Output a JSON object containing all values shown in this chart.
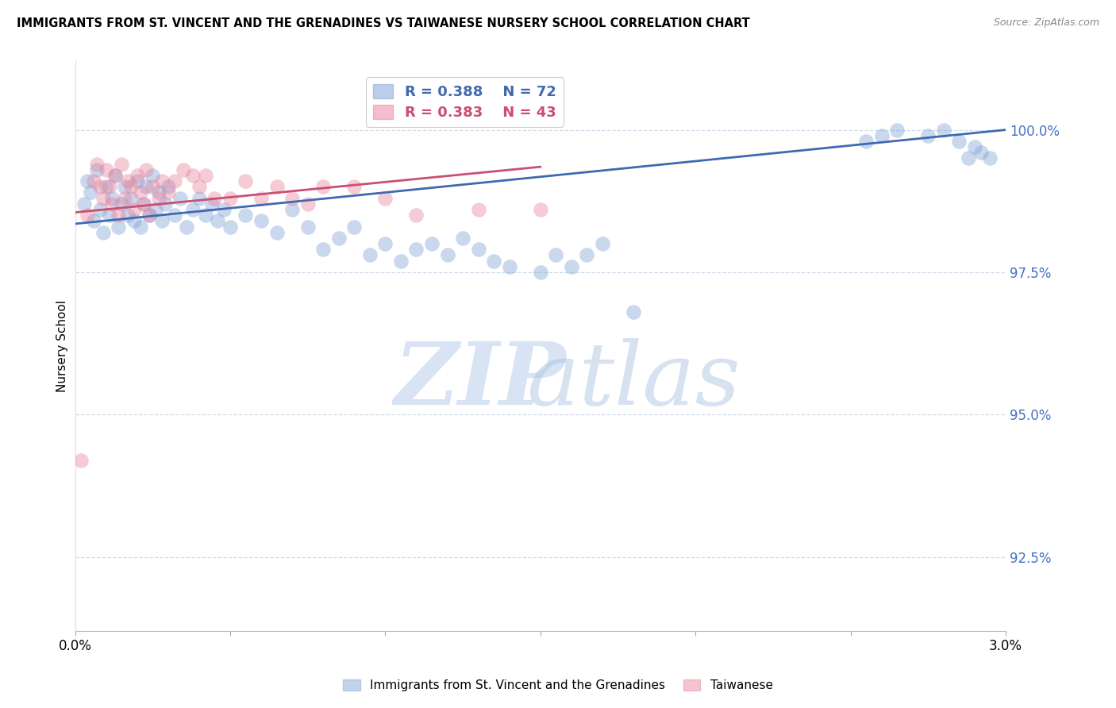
{
  "title": "IMMIGRANTS FROM ST. VINCENT AND THE GRENADINES VS TAIWANESE NURSERY SCHOOL CORRELATION CHART",
  "source": "Source: ZipAtlas.com",
  "ylabel": "Nursery School",
  "y_ticks": [
    92.5,
    95.0,
    97.5,
    100.0
  ],
  "y_tick_labels": [
    "92.5%",
    "95.0%",
    "97.5%",
    "100.0%"
  ],
  "x_min": 0.0,
  "x_max": 3.0,
  "y_min": 91.2,
  "y_max": 101.2,
  "blue_color": "#7B9FD4",
  "pink_color": "#E8809A",
  "blue_line_color": "#4169B0",
  "pink_line_color": "#C85070",
  "legend_blue_R": "R = 0.388",
  "legend_blue_N": "N = 72",
  "legend_pink_R": "R = 0.383",
  "legend_pink_N": "N = 43",
  "blue_scatter_x": [
    0.03,
    0.04,
    0.05,
    0.06,
    0.07,
    0.08,
    0.09,
    0.1,
    0.11,
    0.12,
    0.13,
    0.14,
    0.15,
    0.16,
    0.17,
    0.18,
    0.19,
    0.2,
    0.21,
    0.22,
    0.23,
    0.24,
    0.25,
    0.26,
    0.27,
    0.28,
    0.29,
    0.3,
    0.32,
    0.34,
    0.36,
    0.38,
    0.4,
    0.42,
    0.44,
    0.46,
    0.48,
    0.5,
    0.55,
    0.6,
    0.65,
    0.7,
    0.75,
    0.8,
    0.85,
    0.9,
    0.95,
    1.0,
    1.05,
    1.1,
    1.15,
    1.2,
    1.25,
    1.3,
    1.35,
    1.4,
    1.5,
    1.55,
    1.6,
    1.65,
    1.7,
    1.8,
    2.55,
    2.6,
    2.65,
    2.75,
    2.8,
    2.85,
    2.88,
    2.9,
    2.92,
    2.95
  ],
  "blue_scatter_y": [
    98.7,
    99.1,
    98.9,
    98.4,
    99.3,
    98.6,
    98.2,
    99.0,
    98.5,
    98.8,
    99.2,
    98.3,
    98.7,
    99.0,
    98.5,
    98.8,
    98.4,
    99.1,
    98.3,
    98.7,
    99.0,
    98.5,
    99.2,
    98.6,
    98.9,
    98.4,
    98.7,
    99.0,
    98.5,
    98.8,
    98.3,
    98.6,
    98.8,
    98.5,
    98.7,
    98.4,
    98.6,
    98.3,
    98.5,
    98.4,
    98.2,
    98.6,
    98.3,
    97.9,
    98.1,
    98.3,
    97.8,
    98.0,
    97.7,
    97.9,
    98.0,
    97.8,
    98.1,
    97.9,
    97.7,
    97.6,
    97.5,
    97.8,
    97.6,
    97.8,
    98.0,
    96.8,
    99.8,
    99.9,
    100.0,
    99.9,
    100.0,
    99.8,
    99.5,
    99.7,
    99.6,
    99.5
  ],
  "pink_scatter_x": [
    0.02,
    0.04,
    0.06,
    0.07,
    0.08,
    0.09,
    0.1,
    0.11,
    0.12,
    0.13,
    0.14,
    0.15,
    0.16,
    0.17,
    0.18,
    0.19,
    0.2,
    0.21,
    0.22,
    0.23,
    0.24,
    0.25,
    0.27,
    0.28,
    0.3,
    0.32,
    0.35,
    0.38,
    0.4,
    0.42,
    0.45,
    0.5,
    0.55,
    0.6,
    0.65,
    0.7,
    0.75,
    0.8,
    0.9,
    1.0,
    1.1,
    1.3,
    1.5
  ],
  "pink_scatter_y": [
    94.2,
    98.5,
    99.1,
    99.4,
    99.0,
    98.8,
    99.3,
    99.0,
    98.7,
    99.2,
    98.5,
    99.4,
    98.8,
    99.1,
    99.0,
    98.6,
    99.2,
    98.9,
    98.7,
    99.3,
    98.5,
    99.0,
    98.8,
    99.1,
    98.9,
    99.1,
    99.3,
    99.2,
    99.0,
    99.2,
    98.8,
    98.8,
    99.1,
    98.8,
    99.0,
    98.8,
    98.7,
    99.0,
    99.0,
    98.8,
    98.5,
    98.6,
    98.6
  ],
  "blue_trend_x0": 0.0,
  "blue_trend_x1": 3.0,
  "blue_trend_y0": 98.35,
  "blue_trend_y1": 100.0,
  "pink_trend_x0": 0.0,
  "pink_trend_x1": 1.5,
  "pink_trend_y0": 98.55,
  "pink_trend_y1": 99.35
}
